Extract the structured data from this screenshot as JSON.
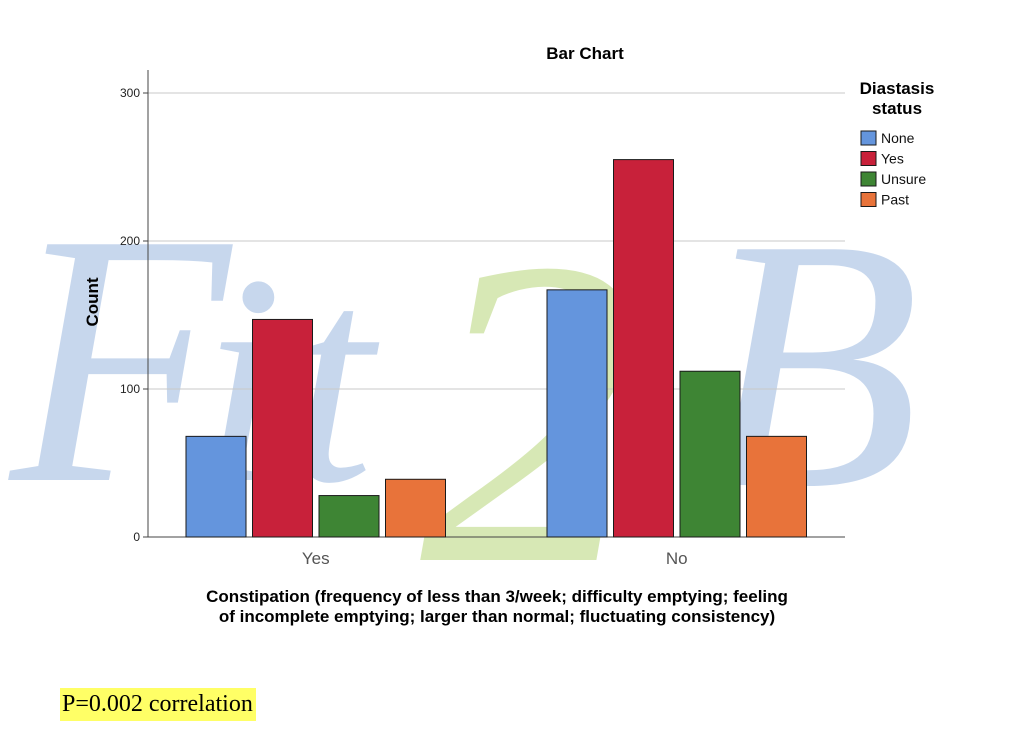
{
  "chart_data": {
    "type": "bar",
    "title": "Bar Chart",
    "xlabel": "Constipation (frequency of less than 3/week; difficulty emptying; feeling of incomplete emptying; larger than normal; fluctuating consistency)",
    "xlabel_lines": [
      "Constipation (frequency of less than 3/week; difficulty emptying; feeling",
      "of incomplete emptying; larger than normal; fluctuating consistency)"
    ],
    "ylabel": "Count",
    "ylim": [
      0,
      315
    ],
    "yticks": [
      0,
      100,
      200,
      300
    ],
    "grid": true,
    "categories": [
      "Yes",
      "No"
    ],
    "legend": {
      "title_lines": [
        "Diastasis",
        "status"
      ],
      "placement": "top-right"
    },
    "series": [
      {
        "name": "None",
        "color": "#6495dd",
        "values": [
          68,
          167
        ]
      },
      {
        "name": "Yes",
        "color": "#c8213a",
        "values": [
          147,
          255
        ]
      },
      {
        "name": "Unsure",
        "color": "#3e8534",
        "values": [
          28,
          112
        ]
      },
      {
        "name": "Past",
        "color": "#e8733a",
        "values": [
          39,
          68
        ]
      }
    ]
  },
  "watermark": {
    "letters": [
      "F",
      "i",
      "t",
      "2",
      "B"
    ],
    "color_blue": "#9bb8e0",
    "color_green": "#b8d67a"
  },
  "footnote": "P=0.002 correlation"
}
